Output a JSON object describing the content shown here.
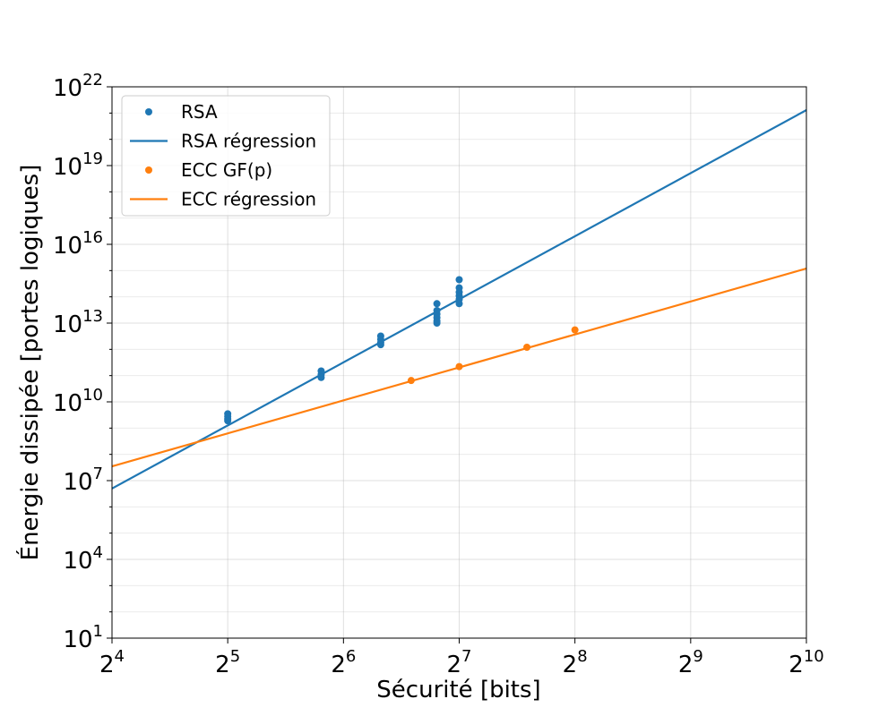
{
  "chart_data": {
    "type": "scatter",
    "xlabel": "Sécurité [bits]",
    "ylabel": "Énergie dissipée [portes logiques]",
    "x_scale": "log2",
    "y_scale": "log10",
    "xlim": [
      16,
      1024
    ],
    "ylim": [
      10,
      1e+22
    ],
    "x_ticks": [
      {
        "base": "2",
        "exp": "4",
        "value": 16
      },
      {
        "base": "2",
        "exp": "5",
        "value": 32
      },
      {
        "base": "2",
        "exp": "6",
        "value": 64
      },
      {
        "base": "2",
        "exp": "7",
        "value": 128
      },
      {
        "base": "2",
        "exp": "8",
        "value": 256
      },
      {
        "base": "2",
        "exp": "9",
        "value": 512
      },
      {
        "base": "2",
        "exp": "10",
        "value": 1024
      }
    ],
    "y_ticks": [
      {
        "base": "10",
        "exp": "1",
        "value": 10
      },
      {
        "base": "10",
        "exp": "4",
        "value": 10000.0
      },
      {
        "base": "10",
        "exp": "7",
        "value": 10000000.0
      },
      {
        "base": "10",
        "exp": "10",
        "value": 10000000000.0
      },
      {
        "base": "10",
        "exp": "13",
        "value": 10000000000000.0
      },
      {
        "base": "10",
        "exp": "16",
        "value": 1e+16
      },
      {
        "base": "10",
        "exp": "19",
        "value": 1e+19
      },
      {
        "base": "10",
        "exp": "22",
        "value": 1e+22
      }
    ],
    "grid": true,
    "legend_position": "top-left",
    "legend": [
      {
        "label": "RSA",
        "kind": "marker",
        "series": "rsa"
      },
      {
        "label": "RSA régression",
        "kind": "line",
        "series": "rsa"
      },
      {
        "label": "ECC GF(p)",
        "kind": "marker",
        "series": "ecc"
      },
      {
        "label": "ECC régression",
        "kind": "line",
        "series": "ecc"
      }
    ],
    "series": [
      {
        "name": "RSA",
        "kind": "scatter",
        "color": "#1f77b4",
        "points": [
          {
            "x": 32,
            "y": 3500000000.0
          },
          {
            "x": 32,
            "y": 2800000000.0
          },
          {
            "x": 32,
            "y": 2200000000.0
          },
          {
            "x": 32,
            "y": 1900000000.0
          },
          {
            "x": 56,
            "y": 150000000000.0
          },
          {
            "x": 56,
            "y": 110000000000.0
          },
          {
            "x": 56,
            "y": 85000000000.0
          },
          {
            "x": 80,
            "y": 3200000000000.0
          },
          {
            "x": 80,
            "y": 2400000000000.0
          },
          {
            "x": 80,
            "y": 1800000000000.0
          },
          {
            "x": 80,
            "y": 1500000000000.0
          },
          {
            "x": 112,
            "y": 55000000000000.0
          },
          {
            "x": 112,
            "y": 30000000000000.0
          },
          {
            "x": 112,
            "y": 22000000000000.0
          },
          {
            "x": 112,
            "y": 16000000000000.0
          },
          {
            "x": 112,
            "y": 12000000000000.0
          },
          {
            "x": 112,
            "y": 10000000000000.0
          },
          {
            "x": 128,
            "y": 450000000000000.0
          },
          {
            "x": 128,
            "y": 220000000000000.0
          },
          {
            "x": 128,
            "y": 150000000000000.0
          },
          {
            "x": 128,
            "y": 110000000000000.0
          },
          {
            "x": 128,
            "y": 80000000000000.0
          },
          {
            "x": 128,
            "y": 55000000000000.0
          }
        ]
      },
      {
        "name": "RSA régression",
        "kind": "line",
        "color": "#1f77b4",
        "x": [
          16,
          1024
        ],
        "y": [
          5000000.0,
          1.3e+21
        ]
      },
      {
        "name": "ECC GF(p)",
        "kind": "scatter",
        "color": "#ff7f0e",
        "points": [
          {
            "x": 96,
            "y": 65000000000.0
          },
          {
            "x": 128,
            "y": 220000000000.0
          },
          {
            "x": 192,
            "y": 1200000000000.0
          },
          {
            "x": 256,
            "y": 5500000000000.0
          }
        ]
      },
      {
        "name": "ECC régression",
        "kind": "line",
        "color": "#ff7f0e",
        "x": [
          16,
          1024
        ],
        "y": [
          35000000.0,
          1200000000000000.0
        ]
      }
    ]
  }
}
